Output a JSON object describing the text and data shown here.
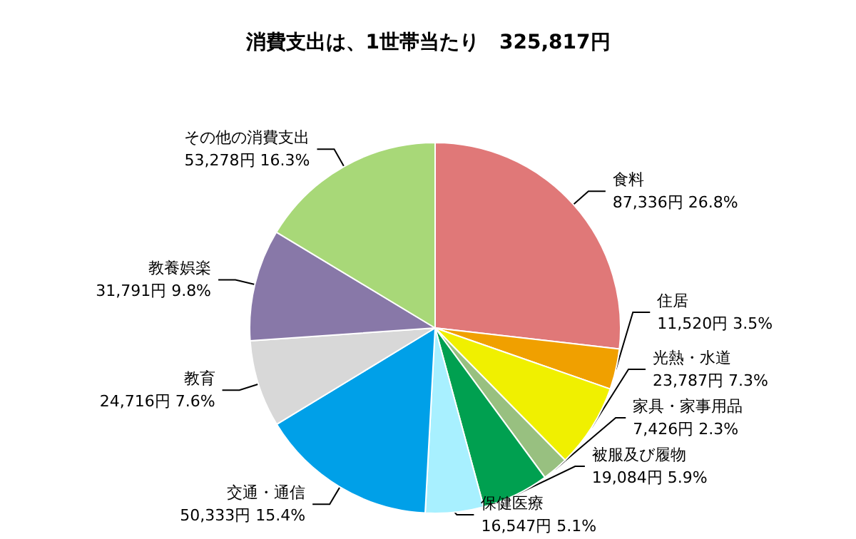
{
  "chart_data": {
    "type": "pie",
    "title": "消費支出は、1世帯当たり　325,817円",
    "categories": [
      "食料",
      "住居",
      "光熱・水道",
      "家具・家事用品",
      "被服及び履物",
      "保健医療",
      "交通・通信",
      "教育",
      "教養娯楽",
      "その他の消費支出"
    ],
    "values": [
      87336,
      11520,
      23787,
      7426,
      19084,
      16547,
      50333,
      24716,
      31791,
      53278
    ],
    "value_labels": [
      "87,336円 26.8%",
      "11,520円 3.5%",
      "23,787円 7.3%",
      "7,426円 2.3%",
      "19,084円 5.9%",
      "16,547円 5.1%",
      "50,333円 15.4%",
      "24,716円 7.6%",
      "31,791円 9.8%",
      "53,278円 16.3%"
    ],
    "colors": [
      "#e07878",
      "#f0a000",
      "#f0f000",
      "#98c080",
      "#00a050",
      "#a8f0ff",
      "#00a0e8",
      "#d8d8d8",
      "#8878a8",
      "#a8d878"
    ]
  }
}
